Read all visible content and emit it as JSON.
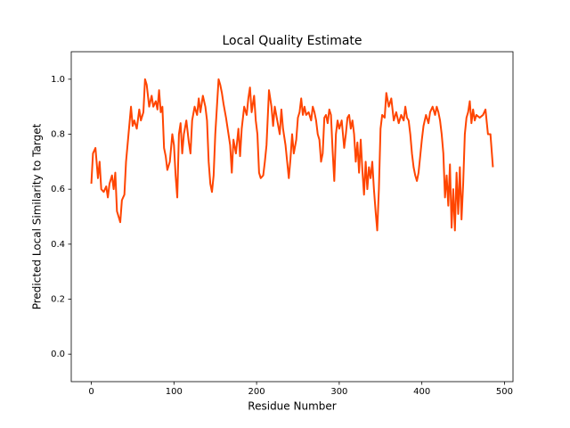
{
  "chart_data": {
    "type": "line",
    "title": "Local Quality Estimate",
    "xlabel": "Residue Number",
    "ylabel": "Predicted Local Similarity to Target",
    "xlim": [
      -24.3,
      510.3
    ],
    "ylim": [
      -0.1,
      1.1
    ],
    "xticks": [
      0,
      100,
      200,
      300,
      400,
      500
    ],
    "yticks": [
      {
        "value": 0,
        "label": "0.0"
      },
      0.2,
      0.4,
      0.6,
      0.8,
      {
        "value": 1,
        "label": "1.0"
      }
    ],
    "grid": false,
    "series": [
      {
        "color": "#ff4500",
        "x": [
          0,
          2,
          5,
          8,
          10,
          12,
          15,
          18,
          20,
          22,
          25,
          27,
          29,
          31,
          33,
          35,
          37,
          40,
          42,
          45,
          48,
          50,
          52,
          55,
          58,
          60,
          63,
          65,
          67,
          70,
          73,
          75,
          78,
          80,
          82,
          84,
          86,
          88,
          90,
          92,
          95,
          98,
          100,
          102,
          104,
          106,
          108,
          110,
          112,
          115,
          118,
          120,
          122,
          125,
          128,
          130,
          132,
          135,
          138,
          140,
          142,
          144,
          146,
          148,
          150,
          152,
          154,
          156,
          158,
          160,
          163,
          166,
          168,
          170,
          172,
          175,
          178,
          180,
          182,
          185,
          188,
          190,
          192,
          194,
          197,
          199,
          201,
          203,
          205,
          208,
          210,
          212,
          215,
          218,
          220,
          222,
          225,
          228,
          230,
          232,
          235,
          237,
          239,
          241,
          243,
          245,
          248,
          250,
          252,
          254,
          256,
          258,
          260,
          263,
          266,
          268,
          270,
          272,
          274,
          276,
          278,
          280,
          282,
          284,
          286,
          288,
          290,
          292,
          294,
          296,
          298,
          300,
          303,
          306,
          308,
          310,
          312,
          314,
          316,
          318,
          320,
          322,
          324,
          326,
          328,
          330,
          332,
          334,
          336,
          338,
          340,
          342,
          344,
          346,
          348,
          350,
          352,
          355,
          357,
          360,
          363,
          366,
          369,
          372,
          375,
          378,
          380,
          382,
          384,
          386,
          388,
          390,
          392,
          394,
          396,
          398,
          400,
          402,
          405,
          408,
          410,
          413,
          416,
          418,
          420,
          422,
          424,
          426,
          428,
          430,
          432,
          434,
          436,
          438,
          440,
          442,
          444,
          446,
          448,
          450,
          452,
          454,
          456,
          458,
          460,
          462,
          464,
          466,
          470,
          474,
          477,
          480,
          483,
          486
        ],
        "values": [
          0.62,
          0.73,
          0.75,
          0.64,
          0.7,
          0.6,
          0.59,
          0.61,
          0.57,
          0.62,
          0.65,
          0.6,
          0.66,
          0.52,
          0.5,
          0.48,
          0.56,
          0.58,
          0.7,
          0.8,
          0.9,
          0.83,
          0.85,
          0.82,
          0.89,
          0.85,
          0.88,
          1.0,
          0.98,
          0.9,
          0.94,
          0.9,
          0.92,
          0.89,
          0.96,
          0.88,
          0.9,
          0.75,
          0.72,
          0.67,
          0.7,
          0.8,
          0.76,
          0.65,
          0.57,
          0.8,
          0.84,
          0.73,
          0.8,
          0.85,
          0.77,
          0.73,
          0.85,
          0.9,
          0.87,
          0.93,
          0.88,
          0.94,
          0.9,
          0.85,
          0.7,
          0.62,
          0.59,
          0.65,
          0.8,
          0.9,
          1.0,
          0.98,
          0.95,
          0.91,
          0.86,
          0.8,
          0.76,
          0.66,
          0.78,
          0.73,
          0.82,
          0.72,
          0.82,
          0.9,
          0.87,
          0.93,
          0.97,
          0.88,
          0.94,
          0.85,
          0.8,
          0.66,
          0.64,
          0.65,
          0.7,
          0.76,
          0.96,
          0.9,
          0.83,
          0.9,
          0.85,
          0.8,
          0.89,
          0.82,
          0.76,
          0.7,
          0.64,
          0.71,
          0.8,
          0.73,
          0.78,
          0.86,
          0.88,
          0.93,
          0.87,
          0.9,
          0.87,
          0.88,
          0.85,
          0.9,
          0.88,
          0.85,
          0.8,
          0.78,
          0.7,
          0.73,
          0.86,
          0.87,
          0.84,
          0.89,
          0.87,
          0.74,
          0.63,
          0.8,
          0.85,
          0.82,
          0.85,
          0.75,
          0.8,
          0.86,
          0.87,
          0.82,
          0.85,
          0.8,
          0.7,
          0.77,
          0.66,
          0.78,
          0.67,
          0.58,
          0.7,
          0.6,
          0.68,
          0.64,
          0.7,
          0.6,
          0.52,
          0.45,
          0.6,
          0.82,
          0.87,
          0.86,
          0.95,
          0.9,
          0.93,
          0.85,
          0.88,
          0.84,
          0.87,
          0.85,
          0.9,
          0.86,
          0.85,
          0.8,
          0.73,
          0.68,
          0.65,
          0.63,
          0.66,
          0.72,
          0.78,
          0.83,
          0.87,
          0.84,
          0.88,
          0.9,
          0.87,
          0.9,
          0.88,
          0.85,
          0.8,
          0.73,
          0.57,
          0.65,
          0.54,
          0.69,
          0.46,
          0.6,
          0.45,
          0.66,
          0.51,
          0.68,
          0.49,
          0.62,
          0.8,
          0.86,
          0.88,
          0.92,
          0.84,
          0.89,
          0.85,
          0.87,
          0.86,
          0.87,
          0.89,
          0.8,
          0.8,
          0.68
        ]
      }
    ]
  }
}
